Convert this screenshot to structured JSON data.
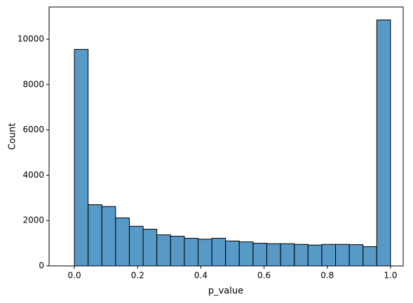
{
  "chart_data": {
    "type": "histogram",
    "x_label": "p_value",
    "y_label": "Count",
    "bins": [
      0,
      0.0435,
      0.087,
      0.1304,
      0.1739,
      0.2174,
      0.2609,
      0.3043,
      0.3478,
      0.3913,
      0.4348,
      0.4783,
      0.5217,
      0.5652,
      0.6087,
      0.6522,
      0.6957,
      0.7391,
      0.7826,
      0.8261,
      0.8696,
      0.913,
      0.9565,
      1.0
    ],
    "values": [
      9550,
      2700,
      2620,
      2120,
      1750,
      1620,
      1370,
      1310,
      1220,
      1180,
      1220,
      1100,
      1060,
      1000,
      980,
      980,
      950,
      920,
      950,
      950,
      940,
      850,
      10850
    ],
    "color": "#5799c7",
    "edge_color": "#000000",
    "xlim": [
      -0.08,
      1.04
    ],
    "ylim": [
      0,
      11420
    ],
    "xticks": [
      {
        "value": 0,
        "label": "0.0"
      },
      0.2,
      0.4,
      0.6,
      0.8,
      {
        "value": 1,
        "label": "1.0"
      }
    ],
    "yticks": [
      0,
      2000,
      4000,
      6000,
      8000,
      10000
    ],
    "grid": false
  }
}
